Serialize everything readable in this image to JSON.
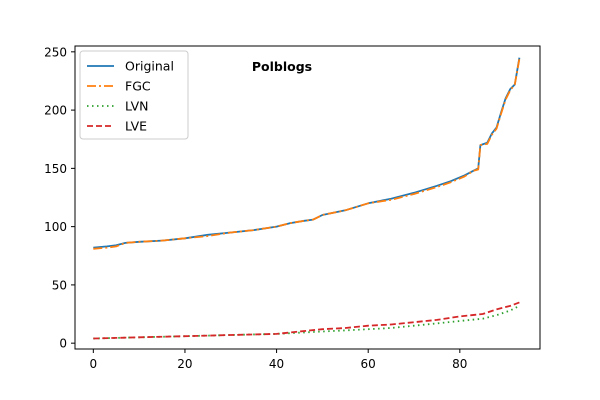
{
  "chart_data": {
    "type": "line",
    "title": "Polblogs",
    "xlabel": "",
    "ylabel": "",
    "xlim": [
      -4,
      97.5
    ],
    "ylim": [
      -5,
      255
    ],
    "xticks": [
      0,
      20,
      40,
      60,
      80
    ],
    "yticks": [
      0,
      50,
      100,
      150,
      200,
      250
    ],
    "legend_position": "top-left",
    "series": [
      {
        "name": "Original",
        "color": "#1f77b4",
        "style": "solid",
        "points": [
          [
            0,
            82
          ],
          [
            3,
            83
          ],
          [
            5,
            84
          ],
          [
            7,
            86
          ],
          [
            10,
            87
          ],
          [
            15,
            88
          ],
          [
            20,
            90
          ],
          [
            25,
            93
          ],
          [
            30,
            95
          ],
          [
            35,
            97
          ],
          [
            40,
            100
          ],
          [
            43,
            103
          ],
          [
            46,
            105
          ],
          [
            48,
            106
          ],
          [
            50,
            110
          ],
          [
            55,
            114
          ],
          [
            60,
            120
          ],
          [
            65,
            124
          ],
          [
            70,
            129
          ],
          [
            75,
            135
          ],
          [
            78,
            139
          ],
          [
            81,
            144
          ],
          [
            83,
            148
          ],
          [
            84,
            150
          ],
          [
            84.5,
            170
          ],
          [
            86,
            172
          ],
          [
            87,
            180
          ],
          [
            88,
            185
          ],
          [
            89,
            198
          ],
          [
            90,
            210
          ],
          [
            91,
            218
          ],
          [
            92,
            222
          ],
          [
            93,
            245
          ]
        ]
      },
      {
        "name": "FGC",
        "color": "#ff7f0e",
        "style": "dashdot",
        "points": [
          [
            0,
            81
          ],
          [
            3,
            82
          ],
          [
            5,
            83
          ],
          [
            7,
            86
          ],
          [
            10,
            87
          ],
          [
            15,
            88
          ],
          [
            20,
            90
          ],
          [
            25,
            92
          ],
          [
            30,
            95
          ],
          [
            35,
            97
          ],
          [
            40,
            100
          ],
          [
            43,
            103
          ],
          [
            46,
            105
          ],
          [
            48,
            106
          ],
          [
            50,
            110
          ],
          [
            55,
            114
          ],
          [
            60,
            120
          ],
          [
            65,
            123
          ],
          [
            70,
            128
          ],
          [
            75,
            134
          ],
          [
            78,
            138
          ],
          [
            81,
            143
          ],
          [
            83,
            148
          ],
          [
            84,
            149
          ],
          [
            84.5,
            170
          ],
          [
            86,
            171
          ],
          [
            87,
            179
          ],
          [
            88,
            184
          ],
          [
            89,
            197
          ],
          [
            90,
            209
          ],
          [
            91,
            217
          ],
          [
            92,
            222
          ],
          [
            93,
            244
          ]
        ]
      },
      {
        "name": "LVN",
        "color": "#2ca02c",
        "style": "dotted",
        "points": [
          [
            0,
            4
          ],
          [
            10,
            5
          ],
          [
            20,
            6
          ],
          [
            30,
            7
          ],
          [
            40,
            8
          ],
          [
            45,
            9
          ],
          [
            50,
            10
          ],
          [
            55,
            11
          ],
          [
            60,
            12
          ],
          [
            65,
            13
          ],
          [
            70,
            15
          ],
          [
            75,
            17
          ],
          [
            80,
            19
          ],
          [
            85,
            21
          ],
          [
            88,
            24
          ],
          [
            91,
            28
          ],
          [
            93,
            32
          ]
        ]
      },
      {
        "name": "LVE",
        "color": "#d62728",
        "style": "dashed",
        "points": [
          [
            0,
            4
          ],
          [
            10,
            5
          ],
          [
            20,
            6
          ],
          [
            30,
            7
          ],
          [
            40,
            8
          ],
          [
            45,
            10
          ],
          [
            50,
            12
          ],
          [
            55,
            13
          ],
          [
            60,
            15
          ],
          [
            65,
            16
          ],
          [
            70,
            18
          ],
          [
            75,
            20
          ],
          [
            80,
            23
          ],
          [
            85,
            25
          ],
          [
            88,
            29
          ],
          [
            91,
            32
          ],
          [
            93,
            35
          ]
        ]
      }
    ]
  }
}
